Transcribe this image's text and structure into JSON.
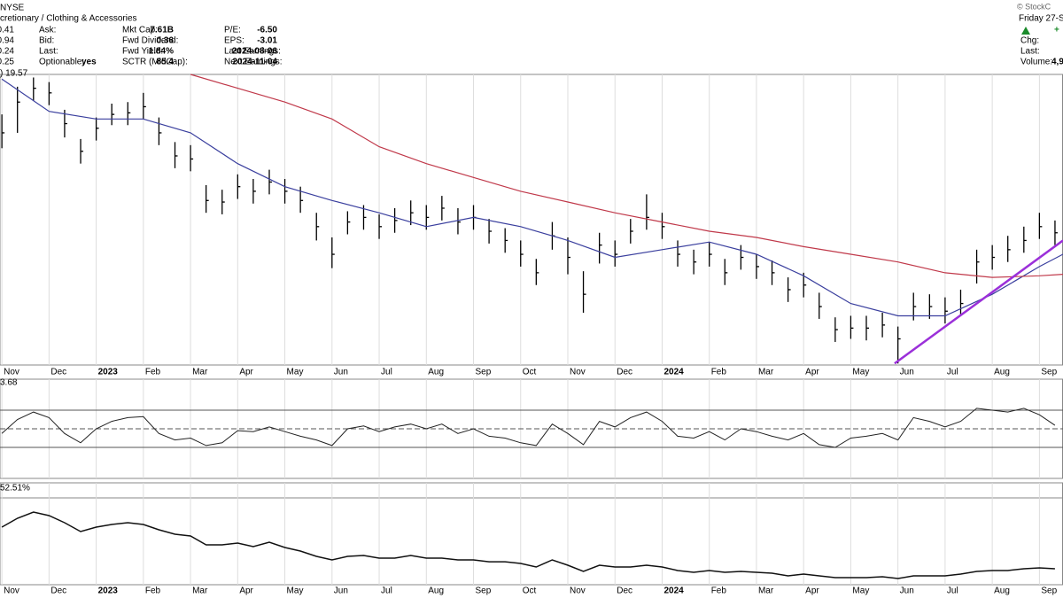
{
  "header": {
    "exchange": "NYSE",
    "copyright": "© StockC",
    "sector": "cretionary / Clothing & Accessories",
    "date": "Friday 27-S",
    "rows": [
      [
        "0.41",
        "Ask:",
        "Mkt Cap:",
        "7.61B",
        "P/E:",
        "-6.50"
      ],
      [
        "0.94",
        "Bid:",
        "Fwd Dividend:",
        "0.36",
        "EPS:",
        "-3.01"
      ],
      [
        "0.24",
        "Last:",
        "Fwd Yield:",
        "1.84%",
        "Last Earnings:",
        "2024-08-06"
      ],
      [
        "0.25",
        "Optionable:",
        "yes",
        "SCTR (MidCap):",
        "85.4",
        "Next Earnings:",
        "2024-11-04"
      ]
    ],
    "right": {
      "plus": "+",
      "chg": "Chg:",
      "last": "Last:",
      "volume": "Volume:",
      "volume_value": "4,9"
    }
  },
  "chart_data": {
    "type": "ohlc",
    "price_label": ") 19.57",
    "xlim": [
      -0.04,
      22.5
    ],
    "xticks": [
      {
        "value": 0,
        "label": "Nov"
      },
      {
        "value": 1,
        "label": "Dec"
      },
      {
        "value": 2,
        "label": "2023"
      },
      {
        "value": 3,
        "label": "Feb"
      },
      {
        "value": 4,
        "label": "Mar"
      },
      {
        "value": 5,
        "label": "Apr"
      },
      {
        "value": 6,
        "label": "May"
      },
      {
        "value": 7,
        "label": "Jun"
      },
      {
        "value": 8,
        "label": "Jul"
      },
      {
        "value": 9,
        "label": "Aug"
      },
      {
        "value": 10,
        "label": "Sep"
      },
      {
        "value": 11,
        "label": "Oct"
      },
      {
        "value": 12,
        "label": "Nov"
      },
      {
        "value": 13,
        "label": "Dec"
      },
      {
        "value": 14,
        "label": "2024"
      },
      {
        "value": 15,
        "label": "Feb"
      },
      {
        "value": 16,
        "label": "Mar"
      },
      {
        "value": 17,
        "label": "Apr"
      },
      {
        "value": 18,
        "label": "May"
      },
      {
        "value": 19,
        "label": "Jun"
      },
      {
        "value": 20,
        "label": "Jul"
      },
      {
        "value": 21,
        "label": "Aug"
      },
      {
        "value": 22,
        "label": "Sep"
      }
    ],
    "ylim": [
      10.9,
      29.8
    ],
    "grid": true,
    "color": "#000000",
    "x": [
      0,
      0.33,
      0.67,
      1,
      1.33,
      1.67,
      2,
      2.33,
      2.67,
      3,
      3.33,
      3.67,
      4,
      4.33,
      4.67,
      5,
      5.33,
      5.67,
      6,
      6.33,
      6.67,
      7,
      7.33,
      7.67,
      8,
      8.33,
      8.67,
      9,
      9.33,
      9.67,
      10,
      10.33,
      10.67,
      11,
      11.33,
      11.67,
      12,
      12.33,
      12.67,
      13,
      13.33,
      13.67,
      14,
      14.33,
      14.67,
      15,
      15.33,
      15.67,
      16,
      16.33,
      16.67,
      17,
      17.33,
      17.67,
      18,
      18.33,
      18.67,
      19,
      19.33,
      19.67,
      20,
      20.33,
      20.67,
      21,
      21.33,
      21.67,
      22,
      22.33
    ],
    "high": [
      27.2,
      29.0,
      29.6,
      29.3,
      27.5,
      25.6,
      27.0,
      27.9,
      28.0,
      28.6,
      27.0,
      25.4,
      25.2,
      22.6,
      22.3,
      23.3,
      23.0,
      23.6,
      23.0,
      22.5,
      20.8,
      19.2,
      20.9,
      21.3,
      20.7,
      21.1,
      21.6,
      21.3,
      21.9,
      21.1,
      21.3,
      20.4,
      19.8,
      19.0,
      17.8,
      20.2,
      19.2,
      17.0,
      19.5,
      19.0,
      20.4,
      22.0,
      20.8,
      19.0,
      18.4,
      18.9,
      17.8,
      18.7,
      18.1,
      17.7,
      16.6,
      16.9,
      15.6,
      14.0,
      14.1,
      14.1,
      14.3,
      13.4,
      15.6,
      15.5,
      15.3,
      15.8,
      18.4,
      18.7,
      19.3,
      19.9,
      20.8,
      20.3
    ],
    "low": [
      25.0,
      26.0,
      28.1,
      27.8,
      25.7,
      24.0,
      25.5,
      26.5,
      26.5,
      26.9,
      25.2,
      23.7,
      23.5,
      20.8,
      20.7,
      21.7,
      21.4,
      22.0,
      21.4,
      20.8,
      19.0,
      17.2,
      19.4,
      19.7,
      19.1,
      19.5,
      20.0,
      19.7,
      20.3,
      19.4,
      19.7,
      18.8,
      18.2,
      17.3,
      16.1,
      18.4,
      16.8,
      14.3,
      17.5,
      17.3,
      18.8,
      19.7,
      19.1,
      17.3,
      16.8,
      17.3,
      16.1,
      17.1,
      16.5,
      16.1,
      15.0,
      15.3,
      13.9,
      12.4,
      12.6,
      12.5,
      12.7,
      11.0,
      13.8,
      13.9,
      13.6,
      14.1,
      16.2,
      17.1,
      17.6,
      18.2,
      19.1,
      18.7
    ],
    "close": [
      26.0,
      28.0,
      28.9,
      28.6,
      26.6,
      24.8,
      26.3,
      27.2,
      27.3,
      27.7,
      26.0,
      24.5,
      24.3,
      21.6,
      21.5,
      22.5,
      22.2,
      22.8,
      22.2,
      21.6,
      19.9,
      18.1,
      20.2,
      20.5,
      19.9,
      20.3,
      20.8,
      20.5,
      21.1,
      20.2,
      20.5,
      19.6,
      19.0,
      18.1,
      16.9,
      19.3,
      17.9,
      15.5,
      18.7,
      18.1,
      19.6,
      20.5,
      19.9,
      18.1,
      17.6,
      18.1,
      16.9,
      17.9,
      17.3,
      16.9,
      15.8,
      16.1,
      14.7,
      13.2,
      13.3,
      13.3,
      13.5,
      12.6,
      14.7,
      14.7,
      14.4,
      14.9,
      17.6,
      17.9,
      18.4,
      19.0,
      19.9,
      19.5
    ],
    "overlays": [
      {
        "color": "#3a3f9e",
        "x": [
          0,
          1,
          2,
          3,
          4,
          5,
          6,
          7,
          8,
          9,
          10,
          11,
          12,
          13,
          14,
          15,
          16,
          17,
          18,
          19,
          20,
          21,
          22,
          22.5
        ],
        "values": [
          29.5,
          27.4,
          26.9,
          26.9,
          26.0,
          24.0,
          22.5,
          21.6,
          20.8,
          19.9,
          20.5,
          19.9,
          19.0,
          17.9,
          18.4,
          18.9,
          18.1,
          16.7,
          14.9,
          14.1,
          14.1,
          15.5,
          17.3,
          18.1
        ]
      },
      {
        "color": "#c0394a",
        "x": [
          4,
          5,
          6,
          7,
          8,
          9,
          10,
          11,
          12,
          13,
          14,
          15,
          16,
          17,
          18,
          19,
          20,
          21,
          22,
          22.5
        ],
        "values": [
          29.8,
          28.9,
          28.0,
          26.9,
          25.1,
          24.0,
          23.1,
          22.2,
          21.5,
          20.8,
          20.2,
          19.6,
          19.2,
          18.6,
          18.1,
          17.6,
          16.9,
          16.6,
          16.7,
          16.8
        ]
      },
      {
        "color": "#9b30d9",
        "x": [
          18.93,
          22.5
        ],
        "values": [
          11.0,
          19.0
        ]
      }
    ],
    "rsi": {
      "label": "3.68",
      "ylim": [
        -3.3,
        103.3
      ],
      "yticks": [
        30,
        50,
        70
      ],
      "values": [
        45,
        60,
        68,
        62,
        45,
        35,
        50,
        58,
        62,
        63,
        45,
        38,
        40,
        32,
        35,
        48,
        47,
        52,
        47,
        42,
        38,
        32,
        50,
        53,
        47,
        52,
        55,
        50,
        55,
        45,
        50,
        42,
        40,
        35,
        32,
        55,
        45,
        33,
        58,
        52,
        62,
        68,
        58,
        42,
        40,
        47,
        38,
        50,
        47,
        42,
        38,
        45,
        33,
        30,
        40,
        42,
        45,
        38,
        62,
        58,
        52,
        58,
        72,
        70,
        68,
        72,
        65,
        53.68
      ]
    },
    "relative": {
      "label": "52.51%",
      "ylim": [
        29.5,
        176.7
      ],
      "values": [
        112.7,
        125.5,
        134.4,
        129.3,
        119.1,
        106.3,
        112.7,
        116.5,
        119.1,
        116.5,
        108.8,
        102.4,
        99.9,
        87.1,
        87.1,
        89.6,
        84.5,
        90.9,
        83.2,
        78.1,
        70.4,
        65.3,
        70.4,
        71.7,
        67.9,
        67.9,
        71.7,
        67.9,
        67.9,
        65.3,
        65.3,
        62.7,
        62.7,
        60.2,
        55.1,
        65.3,
        57.6,
        48.7,
        57.6,
        55.1,
        55.1,
        57.6,
        55.1,
        50.0,
        47.4,
        50.0,
        47.4,
        48.7,
        47.4,
        46.1,
        42.3,
        44.8,
        42.3,
        39.7,
        39.7,
        39.7,
        41.0,
        38.4,
        42.3,
        42.3,
        42.3,
        44.8,
        48.7,
        50.0,
        50.0,
        52.5,
        53.8,
        52.51
      ]
    }
  }
}
